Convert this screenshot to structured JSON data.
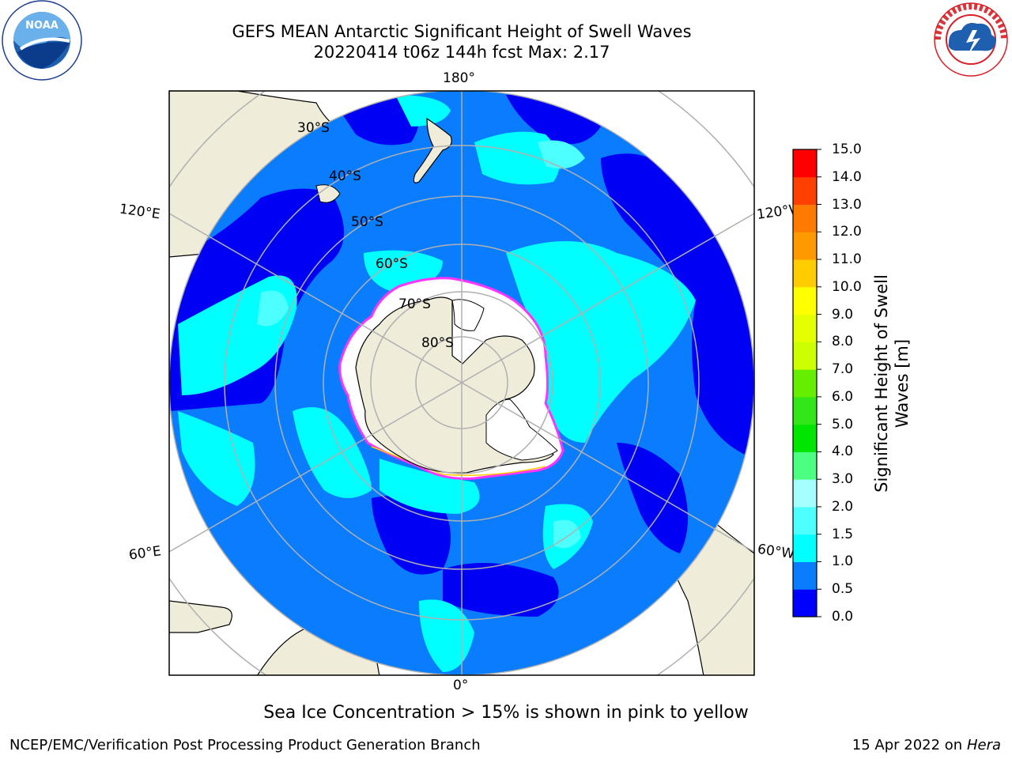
{
  "title": {
    "line1": "GEFS MEAN Antarctic Significant Height of Swell Waves",
    "line2": "20220414 t06z 144h fcst   Max: 2.17"
  },
  "map": {
    "projection": "south-polar-stereographic",
    "longitude_labels": {
      "top": "180°",
      "bottom": "0°",
      "upper_left": "120°E",
      "upper_right": "120°W",
      "lower_left": "60°E",
      "lower_right": "60°W"
    },
    "latitude_labels": [
      "30°S",
      "40°S",
      "50°S",
      "60°S",
      "70°S",
      "80°S"
    ],
    "colors": {
      "land": "#efedd9",
      "ocean_0_0.5": "#0000f5",
      "ocean_0.5_1.0": "#0a7dff",
      "ocean_1.0_1.5": "#00ffff",
      "ocean_1.5_2.0": "#4dffff",
      "ice": "#ffffff",
      "ice_edge": "#ff33ff",
      "graticule": "#b0b0b0"
    }
  },
  "colorbar": {
    "label_line1": "Significant Height of Swell",
    "label_line2": "Waves [m]",
    "ticks": [
      "0.0",
      "0.5",
      "1.0",
      "1.5",
      "2.0",
      "3.0",
      "4.0",
      "5.0",
      "6.0",
      "7.0",
      "8.0",
      "9.0",
      "10.0",
      "11.0",
      "12.0",
      "13.0",
      "14.0",
      "15.0"
    ],
    "colors": [
      "#0000ff",
      "#0a7dff",
      "#00ffff",
      "#4dffff",
      "#a6ffff",
      "#4dff80",
      "#00e600",
      "#33e61a",
      "#66ee00",
      "#ccff00",
      "#e6ff00",
      "#ffff00",
      "#ffcc00",
      "#ff9900",
      "#ff7a00",
      "#ff4000",
      "#ff0000"
    ]
  },
  "logos": {
    "left": "NOAA",
    "right_ring_text": "NATIONAL WEATHER SERVICE"
  },
  "footnote": "Sea Ice Concentration > 15% is shown in pink to yellow",
  "credit_left": "NCEP/EMC/Verification Post Processing Product Generation Branch",
  "credit_right_date": "15 Apr 2022 on ",
  "credit_right_host": "Hera"
}
